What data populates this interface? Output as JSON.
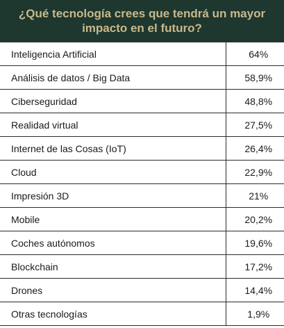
{
  "chart_data": {
    "type": "table",
    "title": "¿Qué tecnología crees que tendrá un mayor impacto en el futuro?",
    "categories": [
      "Inteligencia Artificial",
      "Análisis de datos / Big Data",
      "Ciberseguridad",
      "Realidad virtual",
      "Internet de las Cosas (IoT)",
      "Cloud",
      "Impresión 3D",
      "Mobile",
      "Coches autónomos",
      "Blockchain",
      "Drones",
      "Otras tecnologías"
    ],
    "values": [
      64,
      58.9,
      48.8,
      27.5,
      26.4,
      22.9,
      21,
      20.2,
      19.6,
      17.2,
      14.4,
      1.9
    ],
    "value_labels": [
      "64%",
      "58,9%",
      "48,8%",
      "27,5%",
      "26,4%",
      "22,9%",
      "21%",
      "20,2%",
      "19,6%",
      "17,2%",
      "14,4%",
      "1,9%"
    ]
  },
  "colors": {
    "header_bg": "#1e372f",
    "header_text": "#c9b98b",
    "rule": "#2a2a2a",
    "text": "#1a1a1a"
  }
}
